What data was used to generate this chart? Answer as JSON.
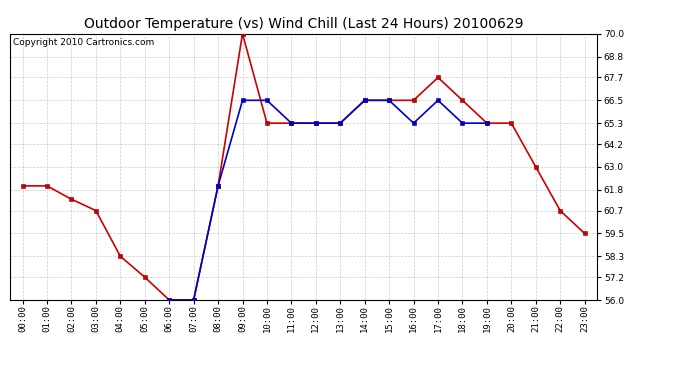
{
  "title": "Outdoor Temperature (vs) Wind Chill (Last 24 Hours) 20100629",
  "copyright": "Copyright 2010 Cartronics.com",
  "hours": [
    "00:00",
    "01:00",
    "02:00",
    "03:00",
    "04:00",
    "05:00",
    "06:00",
    "07:00",
    "08:00",
    "09:00",
    "10:00",
    "11:00",
    "12:00",
    "13:00",
    "14:00",
    "15:00",
    "16:00",
    "17:00",
    "18:00",
    "19:00",
    "20:00",
    "21:00",
    "22:00",
    "23:00"
  ],
  "temp": [
    62.0,
    62.0,
    61.3,
    60.7,
    58.3,
    57.2,
    56.0,
    56.0,
    62.0,
    70.0,
    65.3,
    65.3,
    65.3,
    65.3,
    66.5,
    66.5,
    66.5,
    67.7,
    66.5,
    65.3,
    65.3,
    63.0,
    60.7,
    59.5
  ],
  "wind_chill": [
    null,
    null,
    null,
    null,
    null,
    null,
    56.0,
    56.0,
    62.0,
    66.5,
    66.5,
    65.3,
    65.3,
    65.3,
    66.5,
    66.5,
    65.3,
    66.5,
    65.3,
    65.3,
    null,
    null,
    null,
    null
  ],
  "temp_color": "#cc0000",
  "wind_chill_color": "#0000cc",
  "bg_color": "#ffffff",
  "plot_bg_color": "#ffffff",
  "grid_color": "#aaaaaa",
  "border_color": "#000000",
  "ylim": [
    56.0,
    70.0
  ],
  "yticks": [
    56.0,
    57.2,
    58.3,
    59.5,
    60.7,
    61.8,
    63.0,
    64.2,
    65.3,
    66.5,
    67.7,
    68.8,
    70.0
  ],
  "marker": "s",
  "marker_size": 2.5,
  "linewidth": 1.2,
  "title_fontsize": 10,
  "copyright_fontsize": 6.5,
  "tick_fontsize": 6.5
}
